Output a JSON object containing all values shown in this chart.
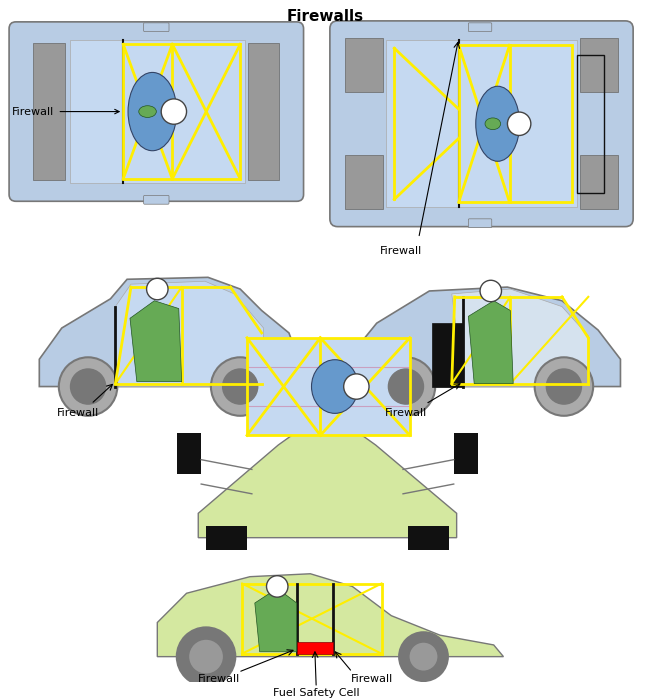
{
  "title": "Firewalls",
  "title_fontsize": 11,
  "title_fontweight": "bold",
  "bg_color": "#ffffff",
  "car_body_color": "#b8cce4",
  "car_body_edge": "#777777",
  "yellow_cage": "#ffee00",
  "driver_body_color": "#6699cc",
  "helmet_color": "#ffffff",
  "green_body": "#66aa55",
  "firewall_label": "Firewall",
  "fuel_label": "Fuel Safety Cell",
  "gray_block": "#999999",
  "light_blue_cockpit": "#c5d9f1",
  "olive_green": "#d4e8a0",
  "olive_dark": "#a0b870",
  "wheel_color": "#aaaaaa",
  "wheel_dark": "#777777",
  "black": "#111111",
  "label_fontsize": 8
}
